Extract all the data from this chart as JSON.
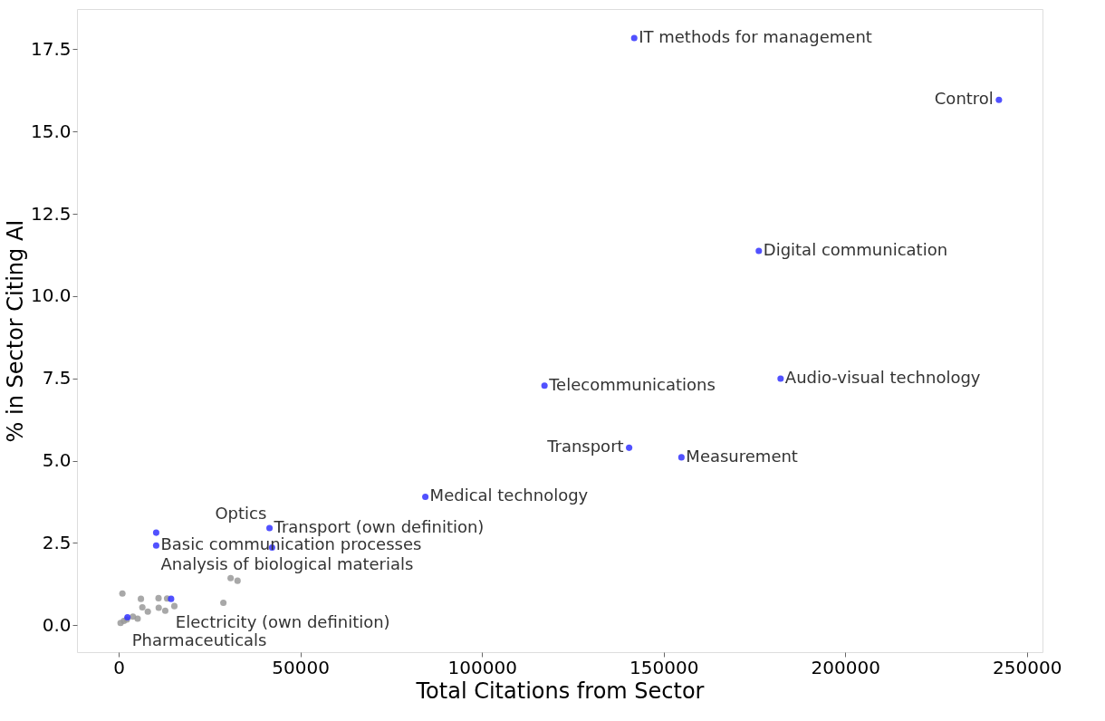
{
  "chart_data": {
    "type": "scatter",
    "xlabel": "Total Citations from Sector",
    "ylabel": "% in Sector Citing AI",
    "xlim": [
      -11500,
      254300
    ],
    "ylim": [
      -0.82,
      18.72
    ],
    "xticks": [
      0,
      50000,
      100000,
      150000,
      200000,
      250000
    ],
    "yticks": [
      {
        "value": 0,
        "label": "0.0"
      },
      2.5,
      {
        "value": 5,
        "label": "5.0"
      },
      7.5,
      {
        "value": 10,
        "label": "10.0"
      },
      12.5,
      {
        "value": 15,
        "label": "15.0"
      },
      17.5
    ],
    "grid": false,
    "legend": false,
    "marker": "circle",
    "series": [
      {
        "color": "#999999",
        "x": [
          1000,
          6100,
          10950,
          13300,
          30800,
          32700,
          28800,
          6500,
          11000,
          15300,
          12800,
          8000,
          5200,
          3900,
          1400,
          500,
          2200
        ],
        "values": [
          0.96,
          0.8,
          0.82,
          0.81,
          1.43,
          1.35,
          0.68,
          0.54,
          0.53,
          0.58,
          0.44,
          0.41,
          0.2,
          0.26,
          0.13,
          0.07,
          0.17
        ]
      },
      {
        "color": "#3333ff",
        "x": [
          141900,
          242300,
          176200,
          182200,
          117200,
          140500,
          154900,
          84400,
          41500,
          10300,
          10300,
          42200,
          14400,
          2400
        ],
        "values": [
          17.84,
          15.96,
          11.37,
          7.49,
          7.28,
          5.39,
          5.1,
          3.9,
          2.95,
          2.81,
          2.42,
          2.36,
          0.8,
          0.24
        ]
      }
    ],
    "annotations": [
      {
        "text": "IT methods for management",
        "x": 141900,
        "y": 17.84
      },
      {
        "text": "Control",
        "x": 242300,
        "y": 15.96
      },
      {
        "text": "Digital communication",
        "x": 176200,
        "y": 11.37
      },
      {
        "text": "Audio-visual technology",
        "x": 182200,
        "y": 7.49
      },
      {
        "text": "Telecommunications",
        "x": 117200,
        "y": 7.28
      },
      {
        "text": "Transport",
        "x": 140500,
        "y": 5.39
      },
      {
        "text": "Measurement",
        "x": 154900,
        "y": 5.1
      },
      {
        "text": "Medical technology",
        "x": 84400,
        "y": 3.9
      },
      {
        "text": "Transport (own definition)",
        "x": 41500,
        "y": 2.95
      },
      {
        "text": "Analysis of biological materials",
        "x": 10300,
        "y": 2.81
      },
      {
        "text": "Basic communication processes",
        "x": 10300,
        "y": 2.42
      },
      {
        "text": "Optics",
        "x": 42200,
        "y": 2.36
      },
      {
        "text": "Electricity (own definition)",
        "x": 14400,
        "y": 0.8
      },
      {
        "text": "Pharmaceuticals",
        "x": 2400,
        "y": 0.24
      }
    ]
  }
}
